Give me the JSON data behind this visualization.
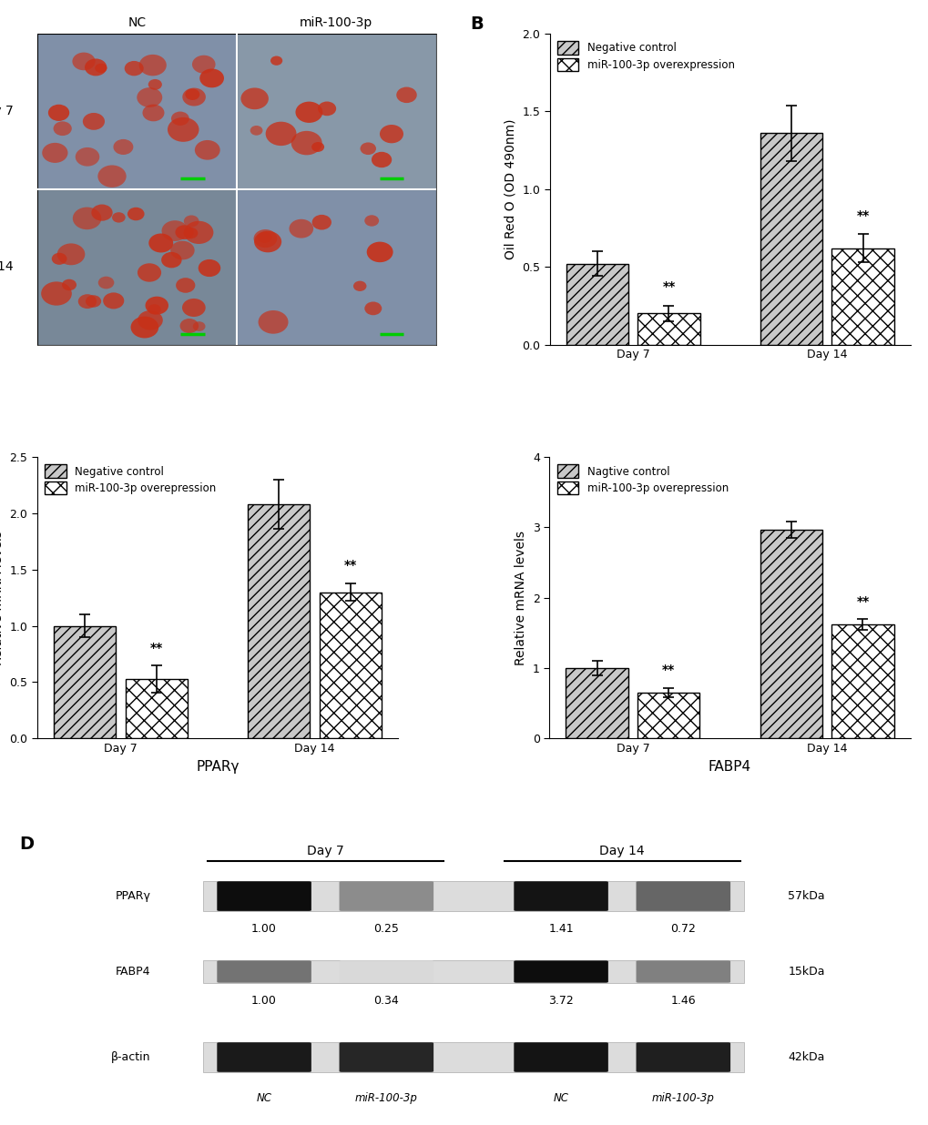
{
  "panel_B": {
    "groups": [
      "Day 7",
      "Day 14"
    ],
    "NC_values": [
      0.52,
      1.36
    ],
    "NC_errors": [
      0.08,
      0.18
    ],
    "miR_values": [
      0.2,
      0.62
    ],
    "miR_errors": [
      0.05,
      0.09
    ],
    "ylabel": "Oil Red O (OD 490nm)",
    "ylim": [
      0,
      2.0
    ],
    "yticks": [
      0.0,
      0.5,
      1.0,
      1.5,
      2.0
    ],
    "legend1": "Negative control",
    "legend2": "miR-100-3p overexpression",
    "sig_labels": [
      "**",
      "**"
    ]
  },
  "panel_C_left": {
    "groups": [
      "Day 7",
      "Day 14"
    ],
    "NC_values": [
      1.0,
      2.08
    ],
    "NC_errors": [
      0.1,
      0.22
    ],
    "miR_values": [
      0.53,
      1.3
    ],
    "miR_errors": [
      0.12,
      0.08
    ],
    "ylabel": "Relative mRNA levels",
    "xlabel": "PPARγ",
    "ylim": [
      0,
      2.5
    ],
    "yticks": [
      0.0,
      0.5,
      1.0,
      1.5,
      2.0,
      2.5
    ],
    "legend1": "Negative control",
    "legend2": "miR-100-3p overepression",
    "sig_labels": [
      "**",
      "**"
    ]
  },
  "panel_C_right": {
    "groups": [
      "Day 7",
      "Day 14"
    ],
    "NC_values": [
      1.0,
      2.97
    ],
    "NC_errors": [
      0.1,
      0.12
    ],
    "miR_values": [
      0.65,
      1.62
    ],
    "miR_errors": [
      0.07,
      0.08
    ],
    "ylabel": "Relative mRNA levels",
    "xlabel": "FABP4",
    "ylim": [
      0,
      4
    ],
    "yticks": [
      0,
      1,
      2,
      3,
      4
    ],
    "legend1": "Nagtive control",
    "legend2": "miR-100-3p overepression",
    "sig_labels": [
      "**",
      "**"
    ]
  },
  "panel_D": {
    "proteins": [
      "PPARγ",
      "FABP4",
      "β-actin"
    ],
    "kDa": [
      "57kDa",
      "15kDa",
      "42kDa"
    ],
    "ppar_vals": [
      "1.00",
      "0.25",
      "1.41",
      "0.72"
    ],
    "fabp_vals": [
      "1.00",
      "0.34",
      "3.72",
      "1.46"
    ],
    "x_labels": [
      "NC",
      "miR-100-3p",
      "NC",
      "miR-100-3p"
    ],
    "ppar_intensities": [
      0.05,
      0.55,
      0.08,
      0.4
    ],
    "fabp_intensities": [
      0.45,
      0.85,
      0.05,
      0.5
    ],
    "actin_intensities": [
      0.1,
      0.15,
      0.08,
      0.12
    ]
  },
  "colors": {
    "bar_edge": "#000000",
    "bar_face_NC": "#c8c8c8",
    "bar_face_miR": "#ffffff",
    "background": "#ffffff",
    "panel_A_bg": "#8a9aaa",
    "panel_A_cell": "#7a8a98"
  }
}
